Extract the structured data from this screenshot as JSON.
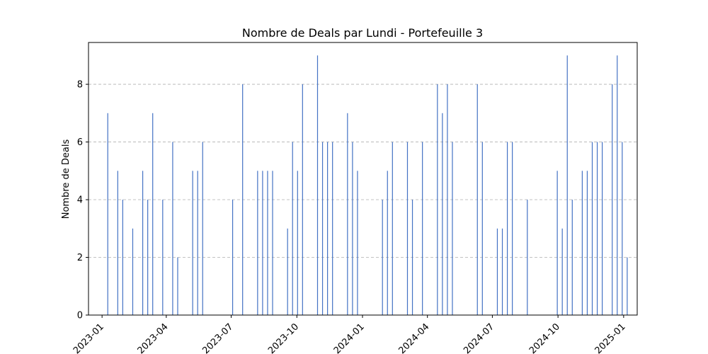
{
  "chart_data": {
    "type": "bar",
    "title": "Nombre de Deals par Lundi - Portefeuille 3",
    "xlabel": "",
    "ylabel": "Nombre de Deals",
    "x_type": "date",
    "xlim": [
      "2022-12-13",
      "2025-01-20"
    ],
    "ylim": [
      0,
      9.45
    ],
    "yticks": [
      0,
      2,
      4,
      6,
      8
    ],
    "xticks": [
      "2023-01",
      "2023-04",
      "2023-07",
      "2023-10",
      "2024-01",
      "2024-04",
      "2024-07",
      "2024-10",
      "2025-01"
    ],
    "grid": "y",
    "bar_color": "#4472c4",
    "x": [
      "2023-01-09",
      "2023-01-23",
      "2023-01-30",
      "2023-02-13",
      "2023-02-27",
      "2023-03-06",
      "2023-03-13",
      "2023-03-27",
      "2023-04-10",
      "2023-04-17",
      "2023-05-08",
      "2023-05-15",
      "2023-05-22",
      "2023-07-03",
      "2023-07-17",
      "2023-08-07",
      "2023-08-14",
      "2023-08-21",
      "2023-08-28",
      "2023-09-18",
      "2023-09-25",
      "2023-10-02",
      "2023-10-09",
      "2023-10-30",
      "2023-11-06",
      "2023-11-13",
      "2023-11-20",
      "2023-12-11",
      "2023-12-18",
      "2023-12-25",
      "2024-01-29",
      "2024-02-05",
      "2024-02-12",
      "2024-03-04",
      "2024-03-11",
      "2024-03-25",
      "2024-04-15",
      "2024-04-22",
      "2024-04-29",
      "2024-05-06",
      "2024-06-10",
      "2024-06-17",
      "2024-07-08",
      "2024-07-15",
      "2024-07-22",
      "2024-07-29",
      "2024-08-19",
      "2024-09-30",
      "2024-10-07",
      "2024-10-14",
      "2024-10-21",
      "2024-11-04",
      "2024-11-11",
      "2024-11-18",
      "2024-11-25",
      "2024-12-02",
      "2024-12-16",
      "2024-12-23",
      "2024-12-30",
      "2025-01-06"
    ],
    "values": [
      7,
      5,
      4,
      3,
      5,
      4,
      7,
      4,
      6,
      2,
      5,
      5,
      6,
      4,
      8,
      5,
      5,
      5,
      5,
      3,
      6,
      5,
      8,
      9,
      6,
      6,
      6,
      7,
      6,
      5,
      4,
      5,
      6,
      6,
      4,
      6,
      8,
      7,
      8,
      6,
      8,
      6,
      3,
      3,
      6,
      6,
      4,
      5,
      3,
      9,
      4,
      5,
      5,
      6,
      6,
      6,
      8,
      9,
      6,
      2
    ]
  }
}
